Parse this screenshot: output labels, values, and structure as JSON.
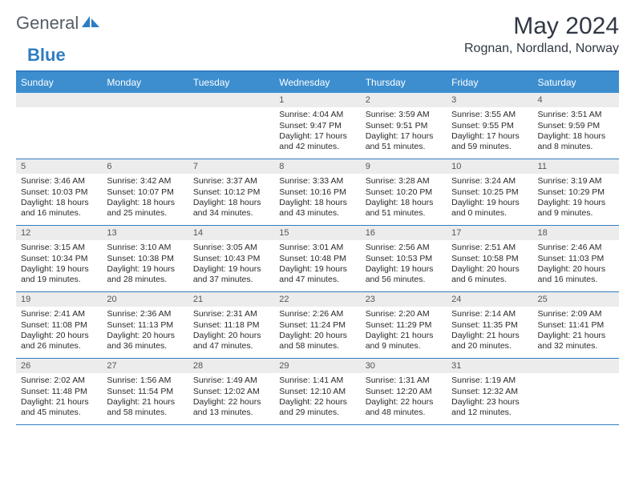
{
  "brand": {
    "word1": "General",
    "word2": "Blue"
  },
  "title": "May 2024",
  "location": "Rognan, Nordland, Norway",
  "colors": {
    "header_bg": "#3d8ecf",
    "rule": "#2f7cc2",
    "daynum_bg": "#ececec",
    "text": "#2a2a2a",
    "title_text": "#303844"
  },
  "typography": {
    "title_fontsize": 30,
    "location_fontsize": 16,
    "dayhead_fontsize": 12,
    "cell_fontsize": 10.5
  },
  "day_headers": [
    "Sunday",
    "Monday",
    "Tuesday",
    "Wednesday",
    "Thursday",
    "Friday",
    "Saturday"
  ],
  "weeks": [
    [
      null,
      null,
      null,
      {
        "num": "1",
        "sunrise": "Sunrise: 4:04 AM",
        "sunset": "Sunset: 9:47 PM",
        "daylight1": "Daylight: 17 hours",
        "daylight2": "and 42 minutes."
      },
      {
        "num": "2",
        "sunrise": "Sunrise: 3:59 AM",
        "sunset": "Sunset: 9:51 PM",
        "daylight1": "Daylight: 17 hours",
        "daylight2": "and 51 minutes."
      },
      {
        "num": "3",
        "sunrise": "Sunrise: 3:55 AM",
        "sunset": "Sunset: 9:55 PM",
        "daylight1": "Daylight: 17 hours",
        "daylight2": "and 59 minutes."
      },
      {
        "num": "4",
        "sunrise": "Sunrise: 3:51 AM",
        "sunset": "Sunset: 9:59 PM",
        "daylight1": "Daylight: 18 hours",
        "daylight2": "and 8 minutes."
      }
    ],
    [
      {
        "num": "5",
        "sunrise": "Sunrise: 3:46 AM",
        "sunset": "Sunset: 10:03 PM",
        "daylight1": "Daylight: 18 hours",
        "daylight2": "and 16 minutes."
      },
      {
        "num": "6",
        "sunrise": "Sunrise: 3:42 AM",
        "sunset": "Sunset: 10:07 PM",
        "daylight1": "Daylight: 18 hours",
        "daylight2": "and 25 minutes."
      },
      {
        "num": "7",
        "sunrise": "Sunrise: 3:37 AM",
        "sunset": "Sunset: 10:12 PM",
        "daylight1": "Daylight: 18 hours",
        "daylight2": "and 34 minutes."
      },
      {
        "num": "8",
        "sunrise": "Sunrise: 3:33 AM",
        "sunset": "Sunset: 10:16 PM",
        "daylight1": "Daylight: 18 hours",
        "daylight2": "and 43 minutes."
      },
      {
        "num": "9",
        "sunrise": "Sunrise: 3:28 AM",
        "sunset": "Sunset: 10:20 PM",
        "daylight1": "Daylight: 18 hours",
        "daylight2": "and 51 minutes."
      },
      {
        "num": "10",
        "sunrise": "Sunrise: 3:24 AM",
        "sunset": "Sunset: 10:25 PM",
        "daylight1": "Daylight: 19 hours",
        "daylight2": "and 0 minutes."
      },
      {
        "num": "11",
        "sunrise": "Sunrise: 3:19 AM",
        "sunset": "Sunset: 10:29 PM",
        "daylight1": "Daylight: 19 hours",
        "daylight2": "and 9 minutes."
      }
    ],
    [
      {
        "num": "12",
        "sunrise": "Sunrise: 3:15 AM",
        "sunset": "Sunset: 10:34 PM",
        "daylight1": "Daylight: 19 hours",
        "daylight2": "and 19 minutes."
      },
      {
        "num": "13",
        "sunrise": "Sunrise: 3:10 AM",
        "sunset": "Sunset: 10:38 PM",
        "daylight1": "Daylight: 19 hours",
        "daylight2": "and 28 minutes."
      },
      {
        "num": "14",
        "sunrise": "Sunrise: 3:05 AM",
        "sunset": "Sunset: 10:43 PM",
        "daylight1": "Daylight: 19 hours",
        "daylight2": "and 37 minutes."
      },
      {
        "num": "15",
        "sunrise": "Sunrise: 3:01 AM",
        "sunset": "Sunset: 10:48 PM",
        "daylight1": "Daylight: 19 hours",
        "daylight2": "and 47 minutes."
      },
      {
        "num": "16",
        "sunrise": "Sunrise: 2:56 AM",
        "sunset": "Sunset: 10:53 PM",
        "daylight1": "Daylight: 19 hours",
        "daylight2": "and 56 minutes."
      },
      {
        "num": "17",
        "sunrise": "Sunrise: 2:51 AM",
        "sunset": "Sunset: 10:58 PM",
        "daylight1": "Daylight: 20 hours",
        "daylight2": "and 6 minutes."
      },
      {
        "num": "18",
        "sunrise": "Sunrise: 2:46 AM",
        "sunset": "Sunset: 11:03 PM",
        "daylight1": "Daylight: 20 hours",
        "daylight2": "and 16 minutes."
      }
    ],
    [
      {
        "num": "19",
        "sunrise": "Sunrise: 2:41 AM",
        "sunset": "Sunset: 11:08 PM",
        "daylight1": "Daylight: 20 hours",
        "daylight2": "and 26 minutes."
      },
      {
        "num": "20",
        "sunrise": "Sunrise: 2:36 AM",
        "sunset": "Sunset: 11:13 PM",
        "daylight1": "Daylight: 20 hours",
        "daylight2": "and 36 minutes."
      },
      {
        "num": "21",
        "sunrise": "Sunrise: 2:31 AM",
        "sunset": "Sunset: 11:18 PM",
        "daylight1": "Daylight: 20 hours",
        "daylight2": "and 47 minutes."
      },
      {
        "num": "22",
        "sunrise": "Sunrise: 2:26 AM",
        "sunset": "Sunset: 11:24 PM",
        "daylight1": "Daylight: 20 hours",
        "daylight2": "and 58 minutes."
      },
      {
        "num": "23",
        "sunrise": "Sunrise: 2:20 AM",
        "sunset": "Sunset: 11:29 PM",
        "daylight1": "Daylight: 21 hours",
        "daylight2": "and 9 minutes."
      },
      {
        "num": "24",
        "sunrise": "Sunrise: 2:14 AM",
        "sunset": "Sunset: 11:35 PM",
        "daylight1": "Daylight: 21 hours",
        "daylight2": "and 20 minutes."
      },
      {
        "num": "25",
        "sunrise": "Sunrise: 2:09 AM",
        "sunset": "Sunset: 11:41 PM",
        "daylight1": "Daylight: 21 hours",
        "daylight2": "and 32 minutes."
      }
    ],
    [
      {
        "num": "26",
        "sunrise": "Sunrise: 2:02 AM",
        "sunset": "Sunset: 11:48 PM",
        "daylight1": "Daylight: 21 hours",
        "daylight2": "and 45 minutes."
      },
      {
        "num": "27",
        "sunrise": "Sunrise: 1:56 AM",
        "sunset": "Sunset: 11:54 PM",
        "daylight1": "Daylight: 21 hours",
        "daylight2": "and 58 minutes."
      },
      {
        "num": "28",
        "sunrise": "Sunrise: 1:49 AM",
        "sunset": "Sunset: 12:02 AM",
        "daylight1": "Daylight: 22 hours",
        "daylight2": "and 13 minutes."
      },
      {
        "num": "29",
        "sunrise": "Sunrise: 1:41 AM",
        "sunset": "Sunset: 12:10 AM",
        "daylight1": "Daylight: 22 hours",
        "daylight2": "and 29 minutes."
      },
      {
        "num": "30",
        "sunrise": "Sunrise: 1:31 AM",
        "sunset": "Sunset: 12:20 AM",
        "daylight1": "Daylight: 22 hours",
        "daylight2": "and 48 minutes."
      },
      {
        "num": "31",
        "sunrise": "Sunrise: 1:19 AM",
        "sunset": "Sunset: 12:32 AM",
        "daylight1": "Daylight: 23 hours",
        "daylight2": "and 12 minutes."
      },
      null
    ]
  ]
}
